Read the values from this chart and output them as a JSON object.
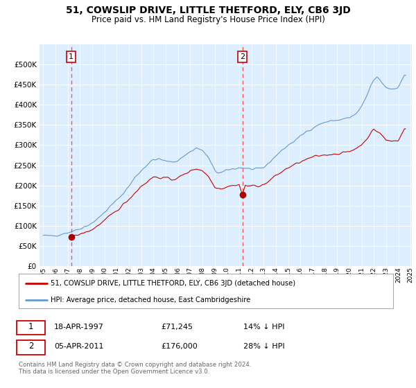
{
  "title": "51, COWSLIP DRIVE, LITTLE THETFORD, ELY, CB6 3JD",
  "subtitle": "Price paid vs. HM Land Registry's House Price Index (HPI)",
  "plot_bg_color": "#ddeeff",
  "ylim": [
    0,
    550000
  ],
  "yticks": [
    0,
    50000,
    100000,
    150000,
    200000,
    250000,
    300000,
    350000,
    400000,
    450000,
    500000
  ],
  "x_start_year": 1995,
  "x_end_year": 2025,
  "sale1_year": 1997.29,
  "sale1_price": 71245,
  "sale1_date": "18-APR-1997",
  "sale1_label": "£71,245",
  "sale1_pct": "14% ↓ HPI",
  "sale2_year": 2011.26,
  "sale2_price": 176000,
  "sale2_date": "05-APR-2011",
  "sale2_label": "£176,000",
  "sale2_pct": "28% ↓ HPI",
  "red_line_color": "#cc0000",
  "blue_line_color": "#6699cc",
  "dot_color": "#aa0000",
  "vline_color": "#ff5555",
  "box_color": "#cc0000",
  "legend_label1": "51, COWSLIP DRIVE, LITTLE THETFORD, ELY, CB6 3JD (detached house)",
  "legend_label2": "HPI: Average price, detached house, East Cambridgeshire",
  "footer": "Contains HM Land Registry data © Crown copyright and database right 2024.\nThis data is licensed under the Open Government Licence v3.0."
}
